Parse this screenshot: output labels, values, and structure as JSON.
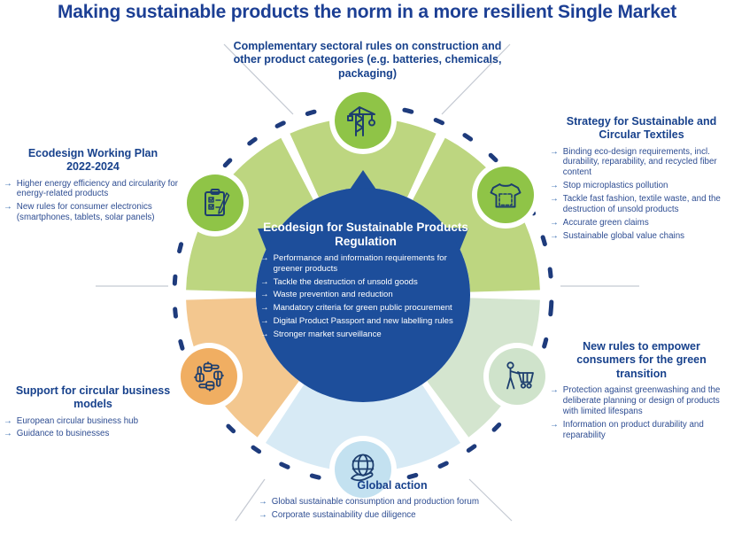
{
  "title": "Making sustainable products the norm in a more resilient Single Market",
  "bullet_glyph": "→",
  "colors": {
    "title_blue": "#1c3f94",
    "heading_navy": "#17418c",
    "body_navy": "#2e4d92",
    "arrow_blue": "#2f66ad",
    "center_blue": "#1d4e9b",
    "segment_green": "#bdd680",
    "segment_sage": "#d4e5cf",
    "segment_lightblue": "#d7eaf5",
    "segment_orange": "#f3c78f",
    "icon_green": "#8fc447",
    "icon_sage": "#cfe3cb",
    "icon_lightblue": "#c3e1f0",
    "icon_orange": "#f0ae62",
    "icon_stroke": "#1d3e6e",
    "dash_navy": "#1e3b7c",
    "connector_gray": "#c4c9d2"
  },
  "center": {
    "heading": "Ecodesign for Sustainable Products Regulation",
    "bullets": [
      "Performance and information requirements for greener products",
      "Tackle the destruction of unsold goods",
      "Waste prevention and reduction",
      "Mandatory criteria for green public procurement",
      "Digital Product Passport and new labelling rules",
      "Stronger market surveillance"
    ]
  },
  "sections": {
    "construction": {
      "heading": "Complementary sectoral rules on construction and other product categories (e.g. batteries, chemicals, packaging)",
      "icon": "crane-icon",
      "bullets": []
    },
    "ecodesign_plan": {
      "heading": "Ecodesign Working Plan 2022-2024",
      "icon": "clipboard-checklist-icon",
      "bullets": [
        "Higher energy efficiency and circularity for energy-related products",
        "New rules for consumer electronics (smartphones, tablets, solar panels)"
      ]
    },
    "textiles": {
      "heading": "Strategy for Sustainable and Circular Textiles",
      "icon": "tshirt-icon",
      "bullets": [
        "Binding eco-design requirements, incl. durability, reparability, and recycled fiber content",
        "Stop microplastics pollution",
        "Tackle fast fashion, textile waste, and the destruction of unsold products",
        "Accurate green claims",
        "Sustainable global value chains"
      ]
    },
    "consumers": {
      "heading": "New rules to empower consumers for the green transition",
      "icon": "shopping-cart-icon",
      "bullets": [
        "Protection against greenwashing and the deliberate planning or design of products with limited lifespans",
        "Information on product durability and reparability"
      ]
    },
    "business": {
      "heading": "Support for circular business models",
      "icon": "hands-circle-icon",
      "bullets": [
        "European circular business hub",
        "Guidance to businesses"
      ]
    },
    "global_action": {
      "heading": "Global action",
      "icon": "globe-hand-icon",
      "bullets": [
        "Global sustainable consumption and production forum",
        "Corporate sustainability due diligence"
      ]
    }
  }
}
